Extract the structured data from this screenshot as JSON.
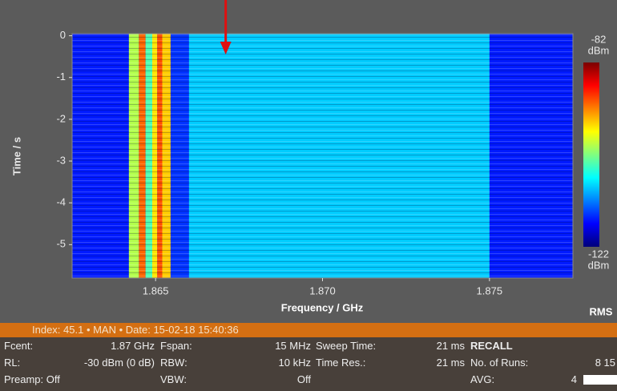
{
  "chart_data": {
    "type": "spectrogram",
    "xlabel": "Frequency / GHz",
    "ylabel": "Time / s",
    "xlim": [
      1.8625,
      1.8775
    ],
    "xticks": [
      1.865,
      {
        "value": 1.87,
        "label": "1.870"
      },
      1.875
    ],
    "ylim": [
      -5.8,
      0.05
    ],
    "yticks": [
      0,
      -1,
      -2,
      -3,
      -4,
      -5
    ],
    "colorbar": {
      "lim": [
        -122,
        -82
      ],
      "ticks": [
        -82,
        -122
      ],
      "unit": "dBm"
    },
    "colormap": [
      "#00007a",
      "#0000ff",
      "#0080ff",
      "#00ffff",
      "#80ff80",
      "#ffff00",
      "#ff8000",
      "#ff0000",
      "#7a0000"
    ],
    "floor": -116,
    "bands": [
      {
        "from": 1.8642,
        "to": 1.8645,
        "level": -100
      },
      {
        "from": 1.8645,
        "to": 1.8647,
        "level": -91
      },
      {
        "from": 1.8647,
        "to": 1.8649,
        "level": -104
      },
      {
        "from": 1.8649,
        "to": 1.86505,
        "level": -96
      },
      {
        "from": 1.86505,
        "to": 1.8652,
        "level": -90
      },
      {
        "from": 1.8652,
        "to": 1.86545,
        "level": -95
      },
      {
        "from": 1.86545,
        "to": 1.866,
        "level": -115
      },
      {
        "from": 1.866,
        "to": 1.875,
        "level": -109
      }
    ],
    "arrow_x": 1.8671,
    "detector": "RMS"
  },
  "status": {
    "index_line": "Index: 45.1 • MAN • Date: 15-02-18 15:40:36",
    "columns": [
      [
        {
          "label": "Fcent:",
          "value": "1.87 GHz"
        },
        {
          "label": "RL:",
          "value": "-30 dBm (0 dB)"
        },
        {
          "label": "Preamp: Off"
        }
      ],
      [
        {
          "label": "Fspan:",
          "value": "15 MHz"
        },
        {
          "label": "RBW:",
          "value": "10 kHz"
        },
        {
          "label": "VBW:",
          "value": "Off"
        }
      ],
      [
        {
          "label": "Sweep Time:",
          "value": "21 ms"
        },
        {
          "label": "Time Res.:",
          "value": "21 ms"
        }
      ],
      [
        {
          "label": "RECALL"
        },
        {
          "label": "No. of Runs:",
          "value": "8 15"
        },
        {
          "label": "AVG:",
          "value": "4"
        }
      ]
    ]
  }
}
